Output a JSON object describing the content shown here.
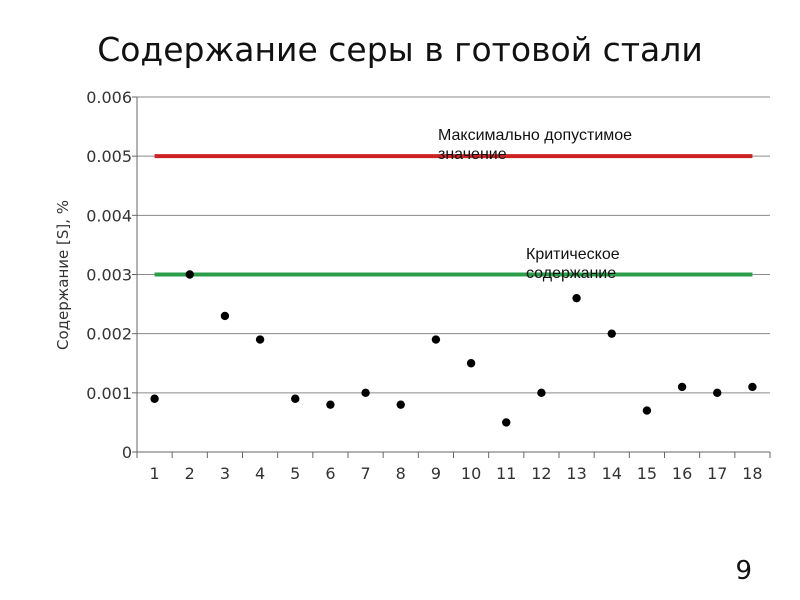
{
  "slide": {
    "title": "Содержание серы в готовой стали",
    "page_number": "9"
  },
  "chart_data": {
    "type": "scatter",
    "title": "Содержание серы в готовой стали",
    "xlabel": "",
    "ylabel": "Содержание [S], %",
    "x": [
      1,
      2,
      3,
      4,
      5,
      6,
      7,
      8,
      9,
      10,
      11,
      12,
      13,
      14,
      15,
      16,
      17,
      18
    ],
    "series": [
      {
        "values": [
          0.0009,
          0.003,
          0.0023,
          0.0019,
          0.0009,
          0.0008,
          0.001,
          0.0008,
          0.0019,
          0.0015,
          0.0005,
          0.001,
          0.0026,
          0.002,
          0.0007,
          0.0011,
          0.001,
          0.0011
        ],
        "color": "#000000"
      }
    ],
    "reference_lines": [
      {
        "value": 0.005,
        "label_lines": [
          "Максимально допустимое",
          "значение"
        ],
        "color": "#cc2222"
      },
      {
        "value": 0.003,
        "label_lines": [
          "Критическое",
          "содержание"
        ],
        "color": "#2a9d4a"
      }
    ],
    "y_ticks": [
      "0",
      "0.001",
      "0.002",
      "0.003",
      "0.004",
      "0.005",
      "0.006"
    ],
    "x_ticks": [
      "1",
      "2",
      "3",
      "4",
      "5",
      "6",
      "7",
      "8",
      "9",
      "10",
      "11",
      "12",
      "13",
      "14",
      "15",
      "16",
      "17",
      "18"
    ],
    "ylim": [
      0,
      0.006
    ],
    "xlim": [
      0.5,
      18.5
    ],
    "grid": "horizontal",
    "legend": "none"
  }
}
